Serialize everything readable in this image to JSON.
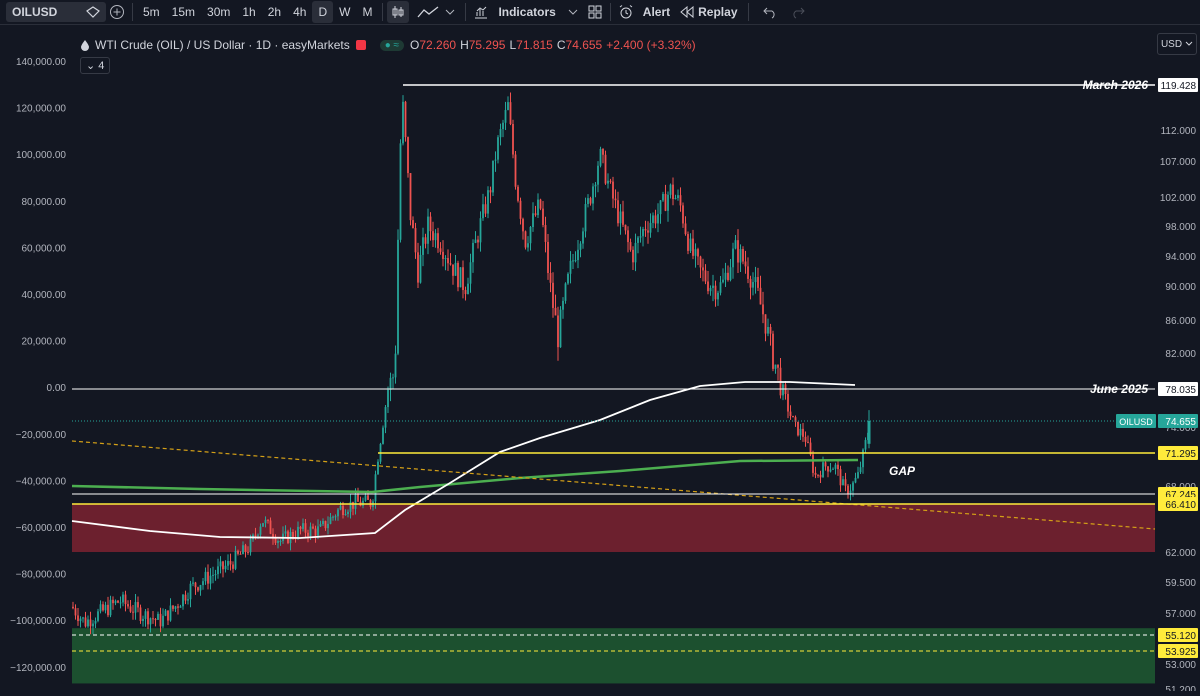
{
  "toolbar": {
    "symbol": "OILUSD",
    "timeframes": [
      "5m",
      "15m",
      "30m",
      "1h",
      "2h",
      "4h",
      "D",
      "W",
      "M"
    ],
    "active_timeframe": "D",
    "indicators_label": "Indicators",
    "alert_label": "Alert",
    "replay_label": "Replay"
  },
  "legend": {
    "title": "WTI Crude (OIL) / US Dollar · 1D · easyMarkets",
    "o_label": "O",
    "o": "72.260",
    "h_label": "H",
    "h": "75.295",
    "l_label": "L",
    "l": "71.815",
    "c_label": "C",
    "c": "74.655",
    "change": "+2.400 (+3.32%)",
    "indicator_count": "4"
  },
  "currency": "USD",
  "colors": {
    "bg": "#131722",
    "up": "#26a69a",
    "down": "#ef5350",
    "ma_green": "#4caf50",
    "ma_white": "#ffffff",
    "level_yellow": "#ffeb3b",
    "zone_red": "#7d2230",
    "zone_green": "#1e5631",
    "trend": "#d4a017"
  },
  "chart_data": {
    "type": "candlestick",
    "left_axis_ticks": [
      "140,000.00",
      "120,000.00",
      "100,000.00",
      "80,000.00",
      "60,000.00",
      "40,000.00",
      "20,000.00",
      "0.00",
      "−20,000.00",
      "−40,000.00",
      "−60,000.00",
      "−80,000.00",
      "−100,000.00",
      "−120,000.00"
    ],
    "right_axis_ticks": [
      "112.000",
      "107.000",
      "102.000",
      "98.000",
      "94.000",
      "90.000",
      "86.000",
      "82.000",
      "74.000",
      "68.000",
      "62.000",
      "59.500",
      "57.000",
      "53.000",
      "51.200"
    ],
    "price_labels": [
      {
        "value": "119.428",
        "kind": "white"
      },
      {
        "value": "78.035",
        "kind": "white"
      },
      {
        "value": "74.655",
        "kind": "green",
        "tag": "OILUSD"
      },
      {
        "value": "71.295",
        "kind": "yellow"
      },
      {
        "value": "67.245",
        "kind": "yellow"
      },
      {
        "value": "66.410",
        "kind": "yellow"
      },
      {
        "value": "55.120",
        "kind": "yellow"
      },
      {
        "value": "53.925",
        "kind": "yellow"
      }
    ],
    "annotations": [
      "March 2026",
      "June 2025",
      "GAP"
    ],
    "levels": [
      {
        "name": "March 2026",
        "price": 119.428
      },
      {
        "name": "June 2025",
        "price": 78.035
      },
      {
        "price": 71.295
      },
      {
        "price": 67.245
      },
      {
        "price": 66.41
      },
      {
        "price": 55.12
      },
      {
        "price": 53.925
      }
    ],
    "zones": [
      {
        "kind": "resistance-red",
        "from": 62.0,
        "to": 66.41
      },
      {
        "kind": "support-green",
        "from": 51.6,
        "to": 55.7
      }
    ],
    "last_price": 74.655
  }
}
